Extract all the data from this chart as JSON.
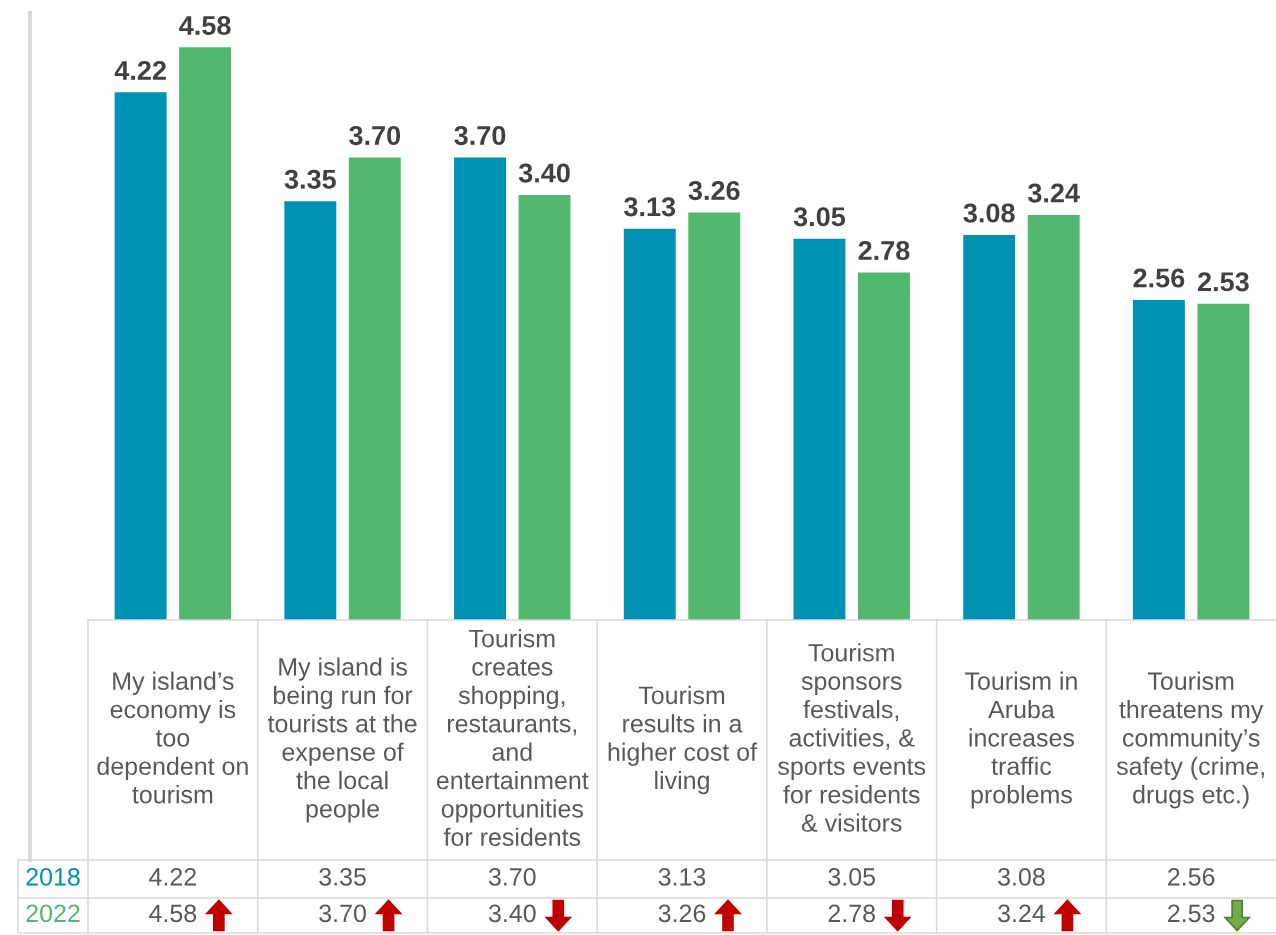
{
  "chart_data": {
    "type": "bar",
    "categories": [
      "My island’s economy is too dependent on tourism",
      "My island is being run for tourists at the expense of the local people",
      "Tourism creates shopping, restaurants, and entertainment opportunities for residents",
      "Tourism results in a higher cost of living",
      "Tourism sponsors festivals, activities, & sports events for residents & visitors",
      "Tourism in Aruba increases traffic problems",
      "Tourism threatens my community’s safety (crime, drugs etc.)"
    ],
    "series": [
      {
        "name": "2018",
        "color": "#0092b3",
        "values": [
          4.22,
          3.35,
          3.7,
          3.13,
          3.05,
          3.08,
          2.56
        ],
        "value_labels": [
          "4.22",
          "3.35",
          "3.70",
          "3.13",
          "3.05",
          "3.08",
          "2.56"
        ]
      },
      {
        "name": "2022",
        "color": "#53b86f",
        "values": [
          4.58,
          3.7,
          3.4,
          3.26,
          2.78,
          3.24,
          2.53
        ],
        "value_labels": [
          "4.58",
          "3.70",
          "3.40",
          "3.26",
          "2.78",
          "3.24",
          "2.53"
        ]
      }
    ],
    "tick_labels": "x"
  }
}
